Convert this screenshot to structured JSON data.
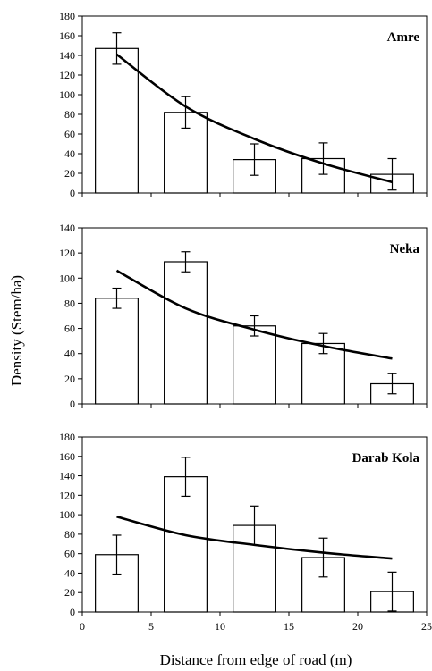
{
  "chart_data": [
    {
      "type": "bar",
      "title": "Amre",
      "xlabel": "Distance from edge of road (m)",
      "ylabel": "Density (Stem/ha)",
      "xlim": [
        0,
        25
      ],
      "ylim": [
        0,
        180
      ],
      "yticks": [
        0,
        20,
        40,
        60,
        80,
        100,
        120,
        140,
        160,
        180
      ],
      "xticks": [
        0,
        5,
        10,
        15,
        20,
        25
      ],
      "x": [
        2.5,
        7.5,
        12.5,
        17.5,
        22.5
      ],
      "values": [
        147,
        82,
        34,
        35,
        19
      ],
      "error": [
        16,
        16,
        16,
        16,
        16
      ],
      "trend": {
        "x": [
          2.5,
          7.5,
          12.5,
          17.5,
          22.5
        ],
        "y": [
          141,
          88,
          55,
          30,
          11
        ]
      }
    },
    {
      "type": "bar",
      "title": "Neka",
      "xlabel": "Distance from edge of road (m)",
      "ylabel": "Density (Stem/ha)",
      "xlim": [
        0,
        25
      ],
      "ylim": [
        0,
        140
      ],
      "yticks": [
        0,
        20,
        40,
        60,
        80,
        100,
        120,
        140
      ],
      "xticks": [
        0,
        5,
        10,
        15,
        20,
        25
      ],
      "x": [
        2.5,
        7.5,
        12.5,
        17.5,
        22.5
      ],
      "values": [
        84,
        113,
        62,
        48,
        16
      ],
      "error": [
        8,
        8,
        8,
        8,
        8
      ],
      "trend": {
        "x": [
          2.5,
          7.5,
          12.5,
          17.5,
          22.5
        ],
        "y": [
          106,
          76,
          59,
          46,
          36
        ]
      }
    },
    {
      "type": "bar",
      "title": "Darab Kola",
      "xlabel": "Distance from edge of road (m)",
      "ylabel": "Density (Stem/ha)",
      "xlim": [
        0,
        25
      ],
      "ylim": [
        0,
        180
      ],
      "yticks": [
        0,
        20,
        40,
        60,
        80,
        100,
        120,
        140,
        160,
        180
      ],
      "xticks": [
        0,
        5,
        10,
        15,
        20,
        25
      ],
      "xticklabels": [
        "0",
        "5",
        "10",
        "15",
        "20",
        "25"
      ],
      "x": [
        2.5,
        7.5,
        12.5,
        17.5,
        22.5
      ],
      "values": [
        59,
        139,
        89,
        56,
        21
      ],
      "error": [
        20,
        20,
        20,
        20,
        20
      ],
      "trend": {
        "x": [
          2.5,
          7.5,
          12.5,
          17.5,
          22.5
        ],
        "y": [
          98,
          79,
          69,
          61,
          55
        ]
      }
    }
  ],
  "figure": {
    "ylabel": "Density (Stem/ha)",
    "xlabel": "Distance from edge of road (m)"
  }
}
